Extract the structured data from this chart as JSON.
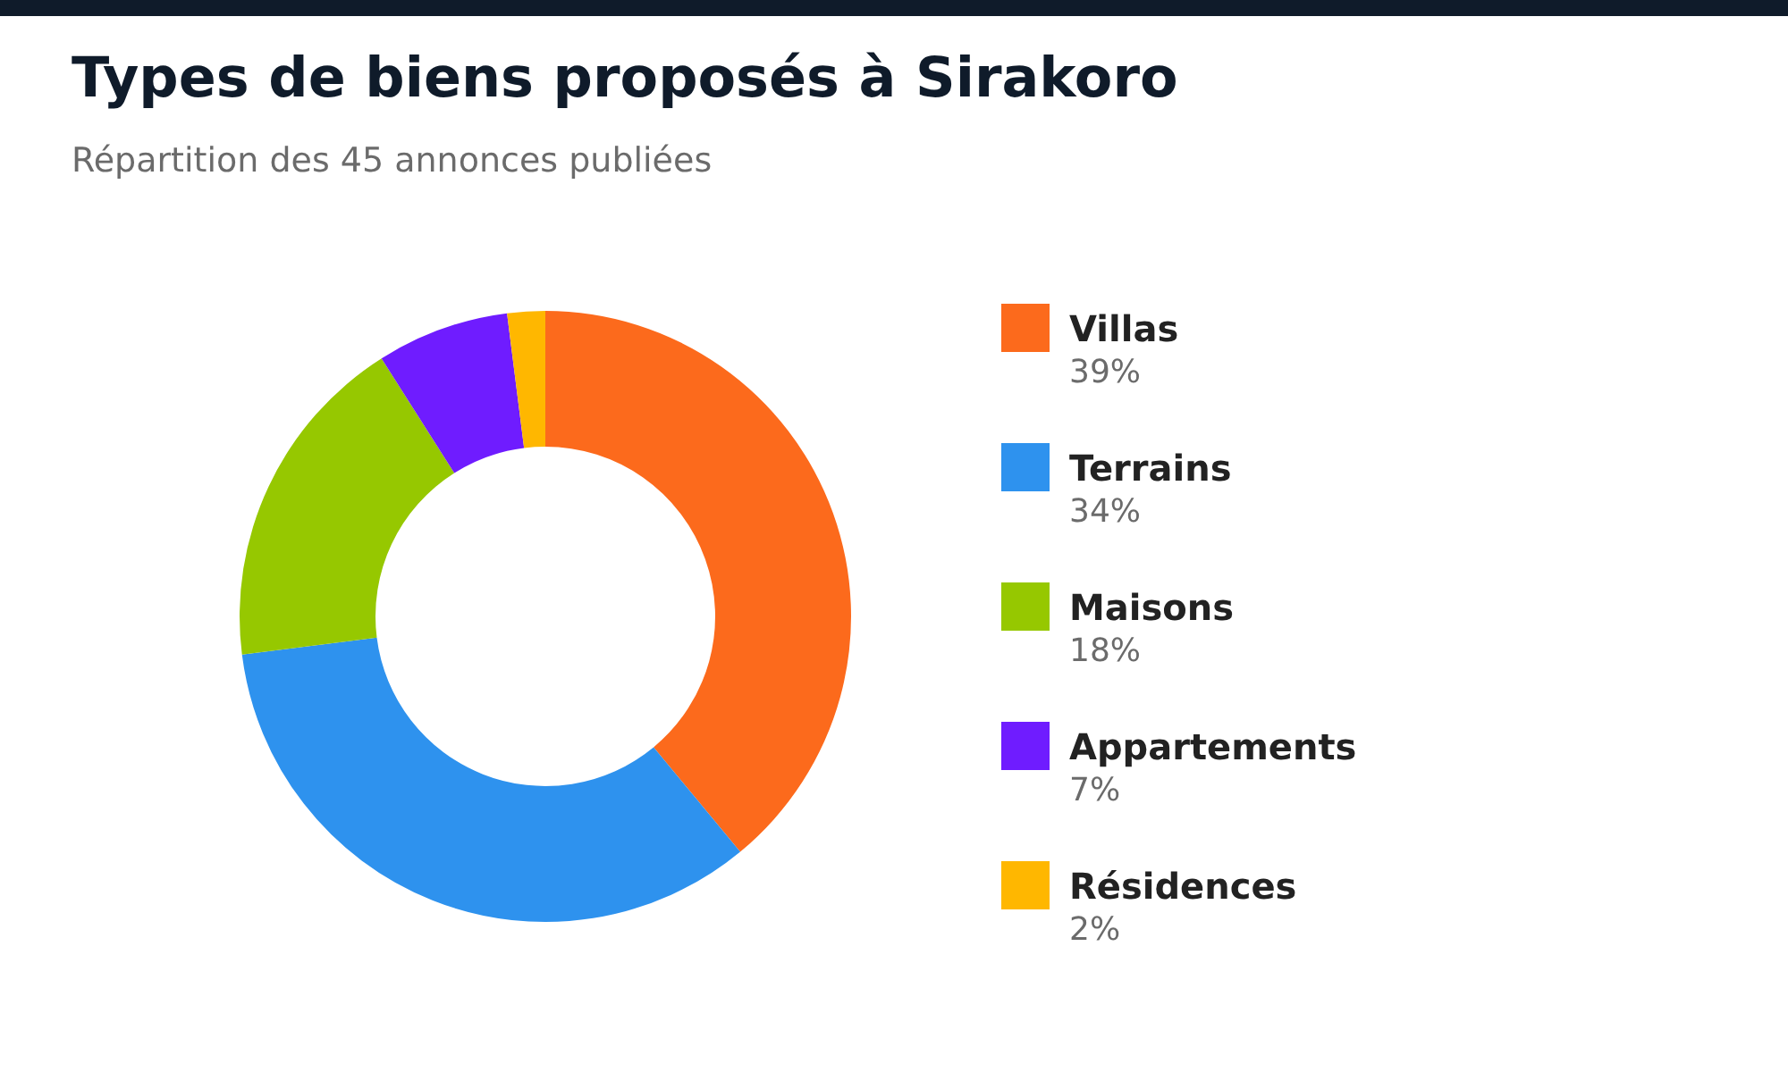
{
  "chart_data": {
    "type": "donut",
    "title": "Types de biens proposés à Sirakoro",
    "subtitle": "Répartition des 45 annonces publiées",
    "categories": [
      "Villas",
      "Terrains",
      "Maisons",
      "Appartements",
      "Résidences"
    ],
    "values": [
      39,
      34,
      18,
      7,
      2
    ],
    "colors": [
      "#fc6a1c",
      "#2e92ee",
      "#96c800",
      "#6f1cff",
      "#ffb700"
    ],
    "value_labels": [
      "39%",
      "34%",
      "18%",
      "7%",
      "2%"
    ],
    "legend": "right"
  }
}
